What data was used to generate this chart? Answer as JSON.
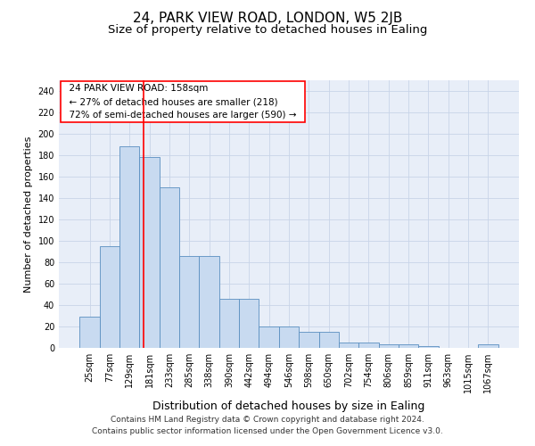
{
  "title_line1": "24, PARK VIEW ROAD, LONDON, W5 2JB",
  "title_line2": "Size of property relative to detached houses in Ealing",
  "xlabel": "Distribution of detached houses by size in Ealing",
  "ylabel": "Number of detached properties",
  "categories": [
    "25sqm",
    "77sqm",
    "129sqm",
    "181sqm",
    "233sqm",
    "285sqm",
    "338sqm",
    "390sqm",
    "442sqm",
    "494sqm",
    "546sqm",
    "598sqm",
    "650sqm",
    "702sqm",
    "754sqm",
    "806sqm",
    "859sqm",
    "911sqm",
    "963sqm",
    "1015sqm",
    "1067sqm"
  ],
  "values": [
    29,
    95,
    188,
    178,
    150,
    86,
    86,
    46,
    46,
    20,
    20,
    15,
    15,
    5,
    5,
    3,
    3,
    2,
    0,
    0,
    3
  ],
  "bar_color": "#c8daf0",
  "bar_edge_color": "#5a8fc0",
  "red_line_x": 2.72,
  "annotation_text": "  24 PARK VIEW ROAD: 158sqm  \n  ← 27% of detached houses are smaller (218)  \n  72% of semi-detached houses are larger (590) →  ",
  "annotation_box_edge_color": "red",
  "red_line_color": "red",
  "ylim": [
    0,
    250
  ],
  "yticks": [
    0,
    20,
    40,
    60,
    80,
    100,
    120,
    140,
    160,
    180,
    200,
    220,
    240
  ],
  "grid_color": "#c8d4e8",
  "bg_color": "#e8eef8",
  "footer_line1": "Contains HM Land Registry data © Crown copyright and database right 2024.",
  "footer_line2": "Contains public sector information licensed under the Open Government Licence v3.0.",
  "title1_fontsize": 11,
  "title2_fontsize": 9.5,
  "xlabel_fontsize": 9,
  "ylabel_fontsize": 8,
  "tick_fontsize": 7,
  "annotation_fontsize": 7.5,
  "footer_fontsize": 6.5
}
